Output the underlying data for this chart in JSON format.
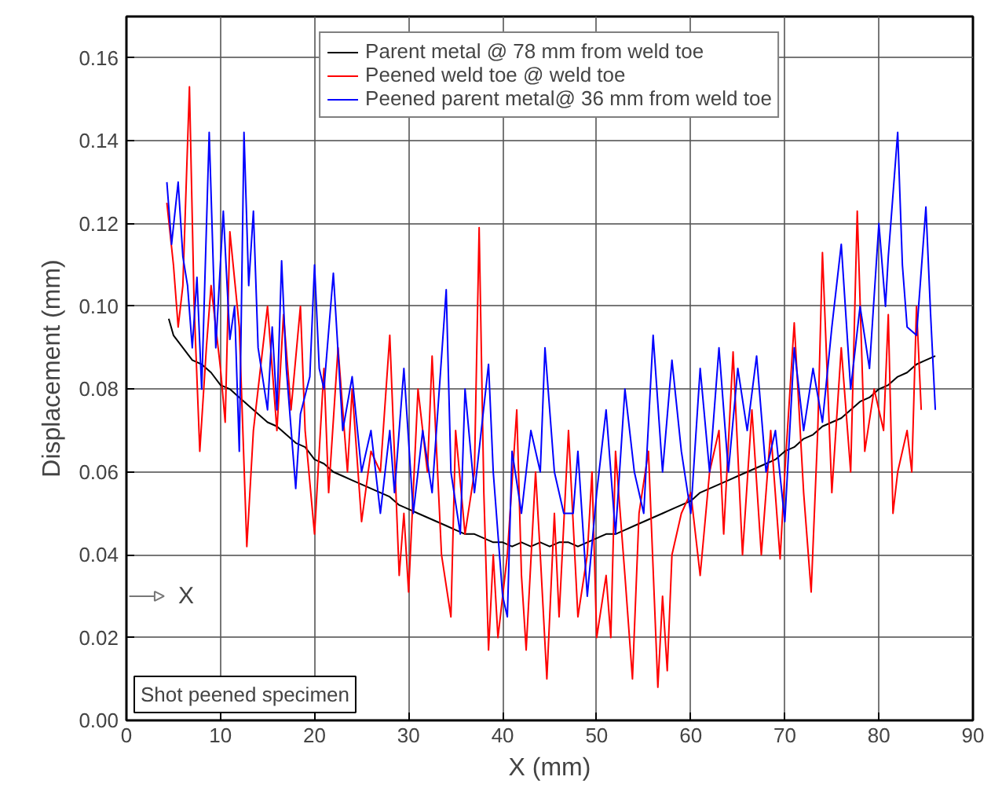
{
  "chart_data": {
    "type": "line",
    "xlabel": "X (mm)",
    "ylabel": "Displacement (mm)",
    "xlim": [
      0,
      90
    ],
    "ylim": [
      0,
      0.17
    ],
    "xticks": [
      0,
      10,
      20,
      30,
      40,
      50,
      60,
      70,
      80,
      90
    ],
    "yticks": [
      {
        "value": 0,
        "label": "0.00"
      },
      {
        "value": 0.02,
        "label": "0.02"
      },
      {
        "value": 0.04,
        "label": "0.04"
      },
      {
        "value": 0.06,
        "label": "0.06"
      },
      {
        "value": 0.08,
        "label": "0.08"
      },
      {
        "value": 0.1,
        "label": "0.10"
      },
      {
        "value": 0.12,
        "label": "0.12"
      },
      {
        "value": 0.14,
        "label": "0.14"
      },
      {
        "value": 0.16,
        "label": "0.16"
      }
    ],
    "grid": true,
    "legend": "top",
    "marker": "none",
    "line_style": "solid",
    "annotations": [
      "X",
      "Shot peened specimen"
    ],
    "series": [
      {
        "name": "Parent metal @ 78 mm from weld toe",
        "color": "#000000",
        "x": [
          4.5,
          5,
          6,
          7,
          8,
          9,
          10,
          11,
          12,
          13,
          14,
          15,
          16,
          17,
          18,
          19,
          20,
          21,
          22,
          23,
          24,
          25,
          26,
          27,
          28,
          29,
          30,
          31,
          32,
          33,
          34,
          35,
          36,
          37,
          38,
          39,
          40,
          41,
          42,
          43,
          44,
          45,
          46,
          47,
          48,
          49,
          50,
          51,
          52,
          53,
          54,
          55,
          56,
          57,
          58,
          59,
          60,
          61,
          62,
          63,
          64,
          65,
          66,
          67,
          68,
          69,
          70,
          71,
          72,
          73,
          74,
          75,
          76,
          77,
          78,
          79,
          80,
          81,
          82,
          83,
          84,
          85,
          86
        ],
        "values": [
          0.097,
          0.093,
          0.09,
          0.087,
          0.086,
          0.084,
          0.081,
          0.08,
          0.078,
          0.076,
          0.074,
          0.072,
          0.071,
          0.069,
          0.067,
          0.066,
          0.063,
          0.062,
          0.06,
          0.059,
          0.058,
          0.057,
          0.056,
          0.055,
          0.054,
          0.052,
          0.051,
          0.05,
          0.049,
          0.048,
          0.047,
          0.046,
          0.045,
          0.045,
          0.044,
          0.043,
          0.043,
          0.042,
          0.043,
          0.042,
          0.043,
          0.042,
          0.043,
          0.043,
          0.042,
          0.043,
          0.044,
          0.045,
          0.045,
          0.046,
          0.047,
          0.048,
          0.049,
          0.05,
          0.051,
          0.052,
          0.053,
          0.055,
          0.056,
          0.057,
          0.058,
          0.059,
          0.06,
          0.061,
          0.062,
          0.063,
          0.065,
          0.066,
          0.068,
          0.069,
          0.071,
          0.072,
          0.073,
          0.075,
          0.077,
          0.078,
          0.08,
          0.081,
          0.083,
          0.084,
          0.086,
          0.087,
          0.088
        ]
      },
      {
        "name": "Peened weld toe @ weld toe",
        "color": "#ff0000",
        "x": [
          4.3,
          5,
          5.5,
          6,
          6.7,
          7.2,
          7.8,
          8.5,
          9,
          10,
          10.5,
          11,
          12,
          12.8,
          13.5,
          14,
          15,
          16,
          16.7,
          17.5,
          18.5,
          19,
          20,
          21,
          21.5,
          22.5,
          23.5,
          24,
          25,
          26,
          27,
          28,
          29,
          29.5,
          30,
          31,
          32,
          32.5,
          33.5,
          34.5,
          35,
          36,
          37,
          37.5,
          38,
          38.5,
          39,
          39.5,
          40.5,
          41.5,
          42,
          42.5,
          43.5,
          44,
          44.7,
          45.5,
          46,
          47,
          48,
          49,
          49.5,
          50,
          51,
          51.5,
          52,
          53,
          53.8,
          54.5,
          55.5,
          56.5,
          57,
          57.5,
          58,
          59,
          60,
          61,
          62,
          63,
          63.5,
          64.5,
          65.5,
          66.5,
          67.5,
          68.5,
          69.5,
          70,
          71,
          72,
          72.8,
          73.5,
          74,
          75,
          76,
          77,
          77.7,
          78.5,
          79.5,
          80.5,
          81,
          81.5,
          82,
          83,
          83.5,
          84,
          84.5
        ],
        "values": [
          0.125,
          0.11,
          0.095,
          0.105,
          0.153,
          0.1,
          0.065,
          0.09,
          0.105,
          0.085,
          0.072,
          0.118,
          0.095,
          0.042,
          0.07,
          0.08,
          0.1,
          0.07,
          0.098,
          0.075,
          0.1,
          0.07,
          0.045,
          0.085,
          0.055,
          0.09,
          0.06,
          0.08,
          0.048,
          0.065,
          0.06,
          0.093,
          0.035,
          0.05,
          0.031,
          0.08,
          0.06,
          0.088,
          0.04,
          0.025,
          0.07,
          0.045,
          0.06,
          0.119,
          0.055,
          0.017,
          0.04,
          0.02,
          0.04,
          0.075,
          0.035,
          0.017,
          0.06,
          0.04,
          0.01,
          0.05,
          0.025,
          0.07,
          0.025,
          0.04,
          0.06,
          0.02,
          0.035,
          0.02,
          0.065,
          0.035,
          0.01,
          0.05,
          0.065,
          0.008,
          0.03,
          0.012,
          0.04,
          0.05,
          0.055,
          0.035,
          0.06,
          0.07,
          0.045,
          0.089,
          0.04,
          0.075,
          0.04,
          0.07,
          0.039,
          0.06,
          0.096,
          0.055,
          0.031,
          0.07,
          0.113,
          0.055,
          0.09,
          0.06,
          0.123,
          0.065,
          0.08,
          0.07,
          0.098,
          0.05,
          0.06,
          0.07,
          0.06,
          0.1,
          0.075
        ]
      },
      {
        "name": "Peened parent metal@ 36 mm from weld toe",
        "color": "#0000ff",
        "x": [
          4.3,
          4.8,
          5.5,
          6,
          6.5,
          7,
          7.5,
          8,
          8.8,
          9.5,
          10.3,
          11,
          11.5,
          12,
          12.5,
          13,
          13.5,
          14,
          15,
          15.5,
          16,
          16.5,
          17,
          18,
          18.5,
          19.5,
          20,
          20.5,
          21,
          22,
          23,
          24,
          25,
          26,
          27,
          28,
          28.5,
          29.5,
          30.5,
          31.5,
          32.5,
          34,
          34.5,
          35.5,
          36,
          37,
          38.5,
          39,
          40,
          40.5,
          41,
          42,
          43,
          44,
          44.5,
          45.5,
          46.5,
          47.5,
          48,
          49,
          50,
          51,
          52,
          53,
          54,
          55,
          56,
          57,
          58,
          59,
          60,
          61,
          62,
          63,
          64,
          65,
          66,
          67,
          68,
          69,
          70,
          71,
          72,
          73,
          74,
          75,
          76,
          77,
          78,
          79,
          80,
          80.7,
          81,
          82,
          82.5,
          83,
          84,
          85,
          85.5,
          86
        ],
        "values": [
          0.13,
          0.115,
          0.13,
          0.112,
          0.105,
          0.09,
          0.107,
          0.08,
          0.142,
          0.09,
          0.123,
          0.092,
          0.1,
          0.065,
          0.142,
          0.105,
          0.123,
          0.09,
          0.075,
          0.095,
          0.075,
          0.111,
          0.085,
          0.056,
          0.074,
          0.083,
          0.11,
          0.085,
          0.08,
          0.108,
          0.07,
          0.083,
          0.06,
          0.07,
          0.05,
          0.07,
          0.055,
          0.085,
          0.05,
          0.07,
          0.055,
          0.104,
          0.06,
          0.045,
          0.08,
          0.055,
          0.086,
          0.06,
          0.03,
          0.025,
          0.065,
          0.05,
          0.07,
          0.06,
          0.09,
          0.06,
          0.05,
          0.05,
          0.065,
          0.03,
          0.055,
          0.075,
          0.045,
          0.08,
          0.06,
          0.05,
          0.093,
          0.06,
          0.087,
          0.065,
          0.05,
          0.085,
          0.06,
          0.09,
          0.06,
          0.085,
          0.07,
          0.088,
          0.06,
          0.07,
          0.048,
          0.09,
          0.07,
          0.085,
          0.072,
          0.095,
          0.115,
          0.08,
          0.1,
          0.085,
          0.12,
          0.1,
          0.112,
          0.142,
          0.11,
          0.095,
          0.093,
          0.124,
          0.098,
          0.075
        ]
      }
    ]
  }
}
